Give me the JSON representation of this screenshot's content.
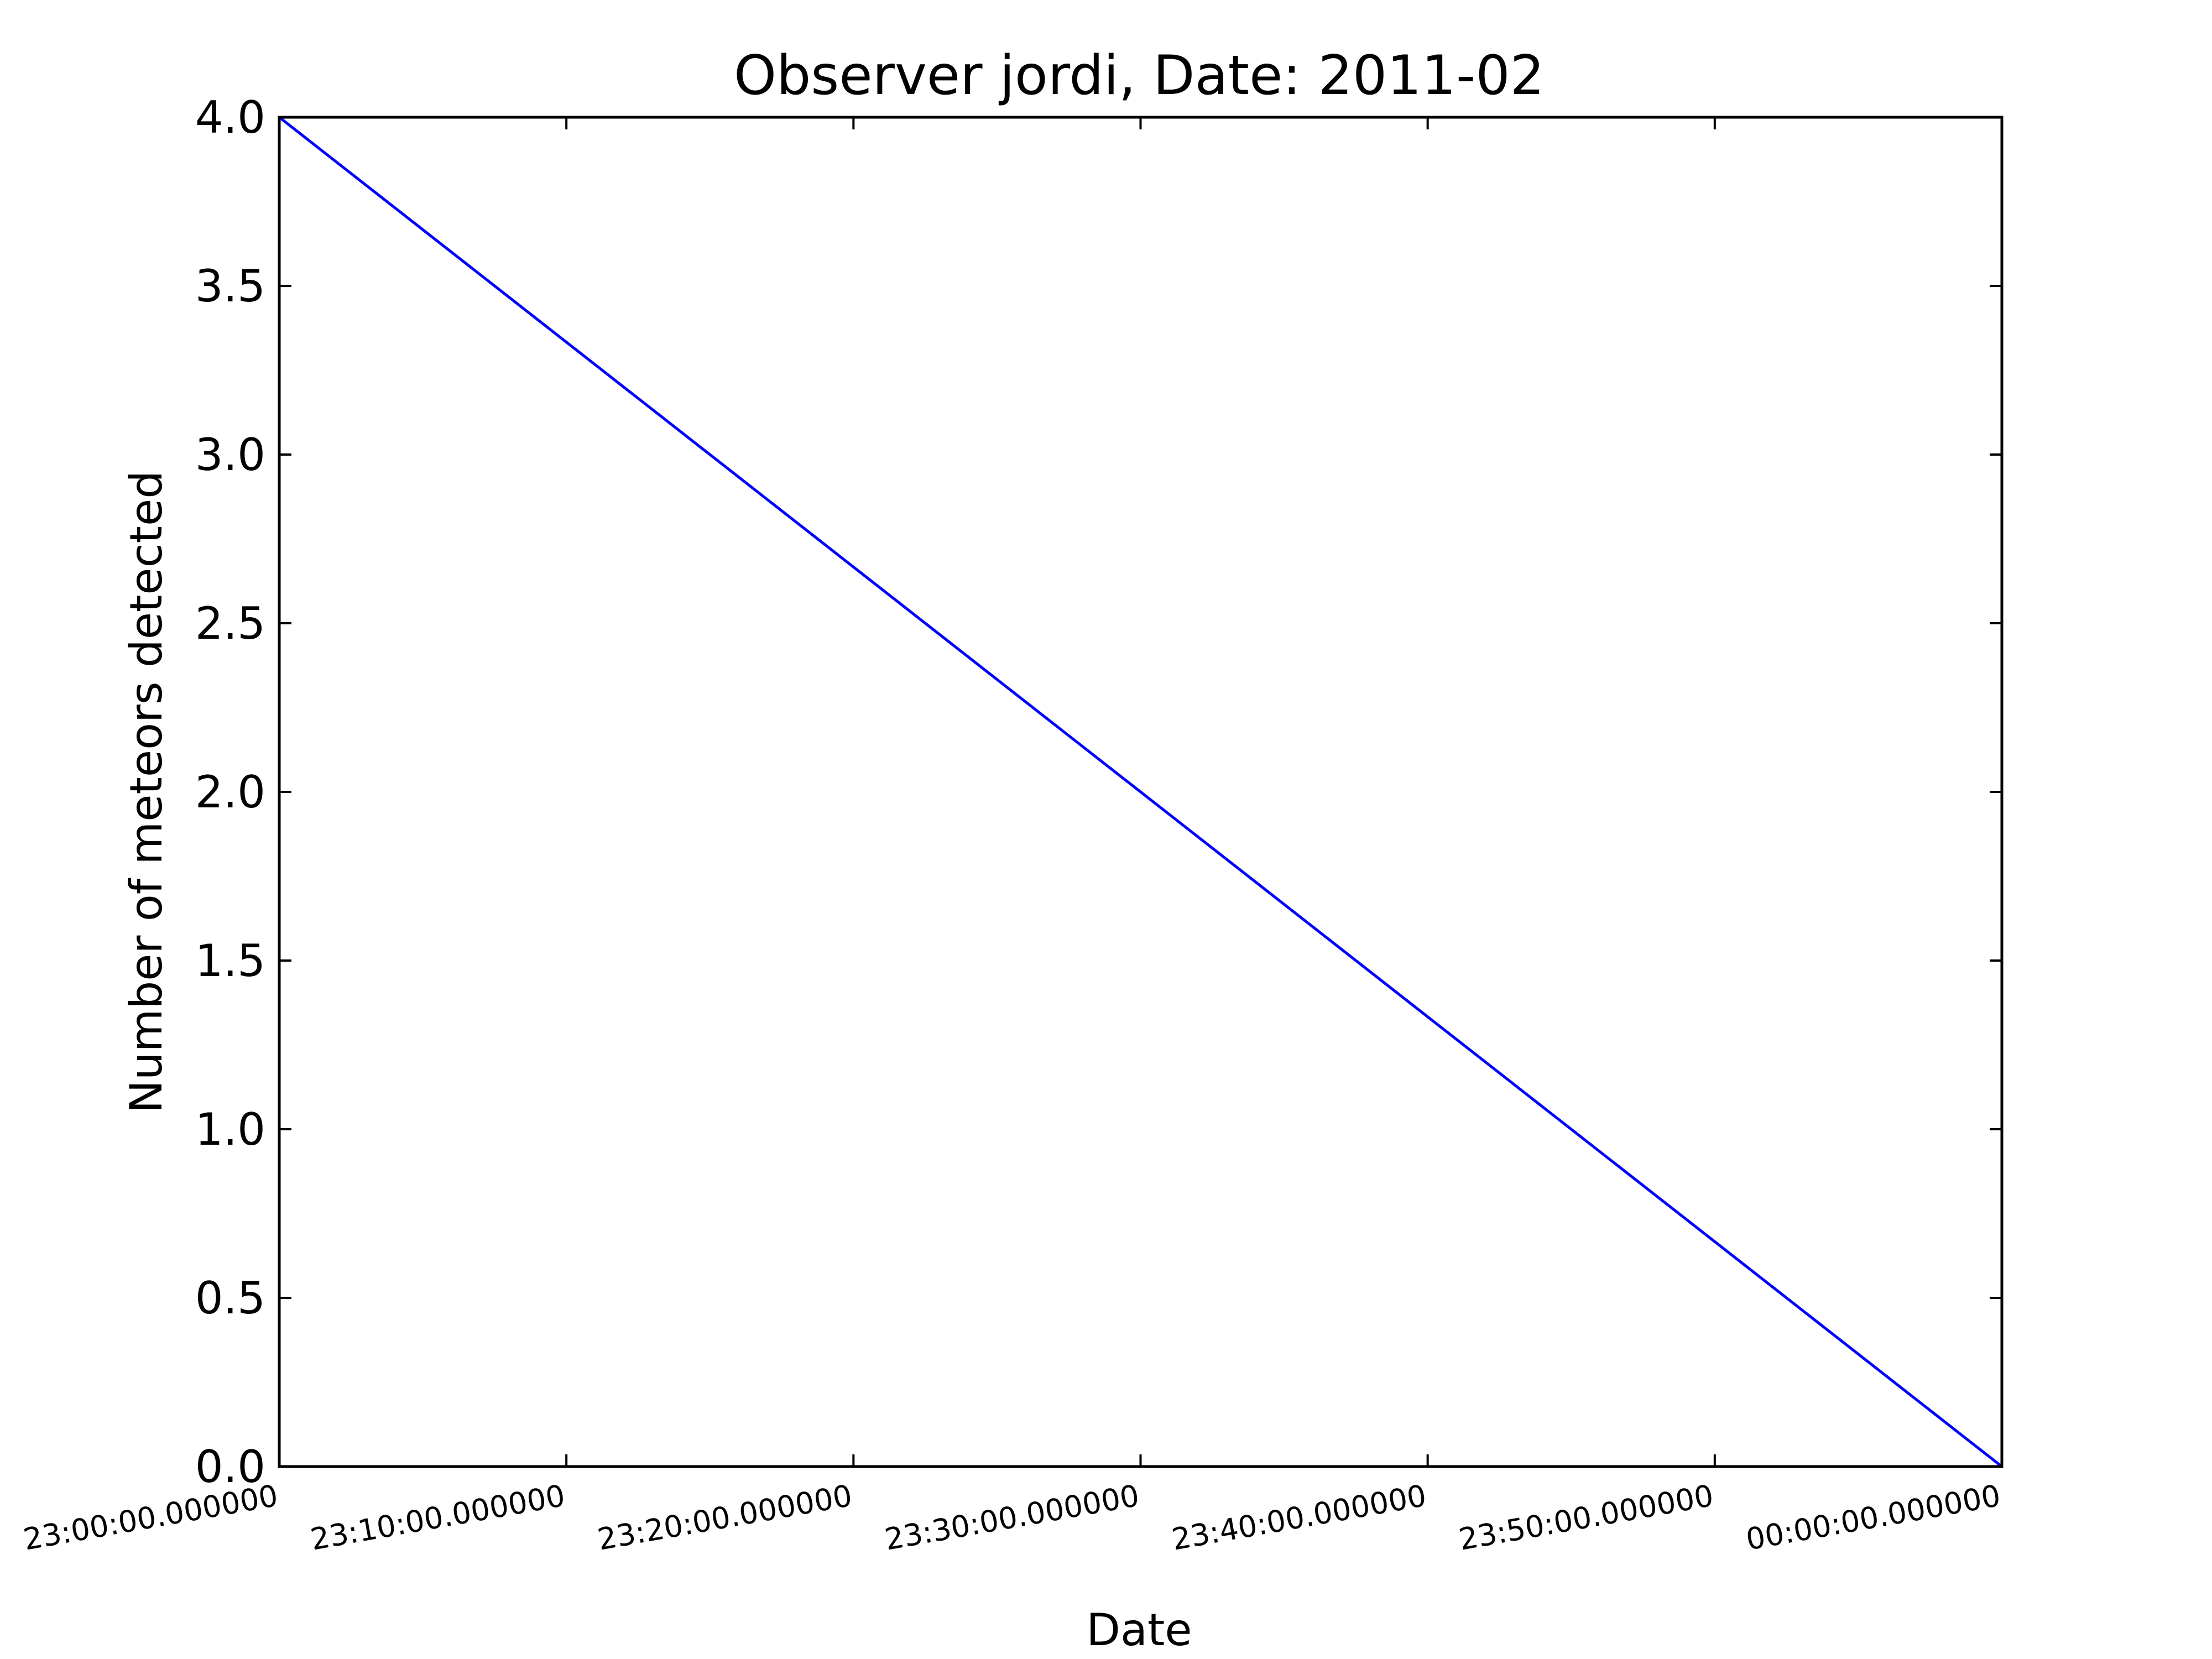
{
  "chart_data": {
    "type": "line",
    "title": "Observer jordi, Date: 2011-02",
    "xlabel": "Date",
    "ylabel": "Number of meteors detected",
    "x_tick_labels": [
      "23:00:00.000000",
      "23:10:00.000000",
      "23:20:00.000000",
      "23:30:00.000000",
      "23:40:00.000000",
      "23:50:00.000000",
      "00:00:00.000000"
    ],
    "y_tick_labels": [
      "0.0",
      "0.5",
      "1.0",
      "1.5",
      "2.0",
      "2.5",
      "3.0",
      "3.5",
      "4.0"
    ],
    "ylim": [
      0,
      4
    ],
    "xlim": [
      "23:00:00.000000",
      "00:00:00.000000"
    ],
    "grid": false,
    "series": [
      {
        "color": "#0000ff",
        "x": [
          "23:00:00.000000",
          "00:00:00.000000"
        ],
        "y": [
          4,
          0
        ]
      }
    ]
  }
}
